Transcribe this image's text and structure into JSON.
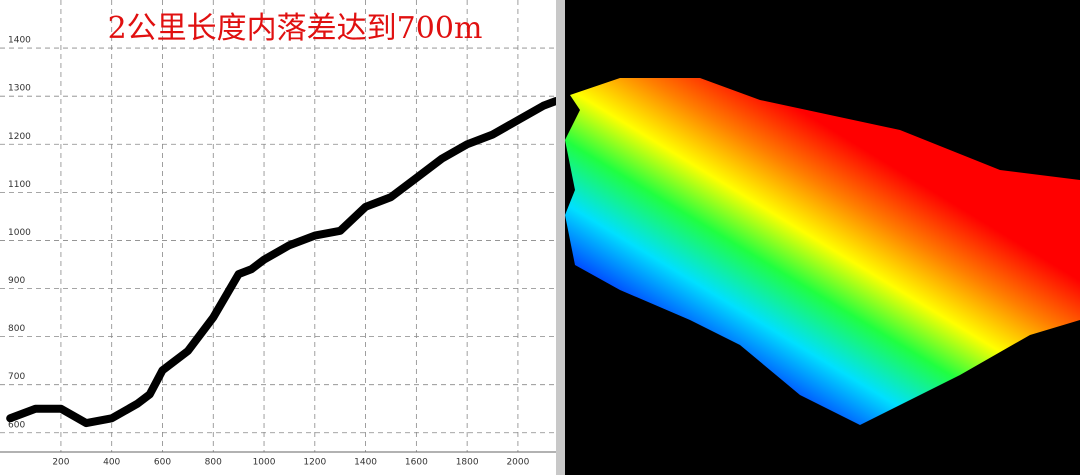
{
  "chart_data": {
    "type": "line",
    "title": "2公里长度内落差达到700m",
    "x": [
      0,
      100,
      200,
      300,
      400,
      500,
      550,
      600,
      700,
      800,
      900,
      950,
      1000,
      1100,
      1200,
      1300,
      1400,
      1500,
      1600,
      1700,
      1800,
      1900,
      2000,
      2100,
      2150
    ],
    "values": [
      630,
      650,
      650,
      620,
      630,
      660,
      680,
      730,
      770,
      840,
      930,
      940,
      960,
      990,
      1010,
      1020,
      1070,
      1090,
      1130,
      1170,
      1200,
      1220,
      1250,
      1280,
      1290
    ],
    "color": "#000000",
    "xlim": [
      -40,
      2150
    ],
    "xticks": [
      200,
      400,
      600,
      800,
      1000,
      1200,
      1400,
      1600,
      1800,
      2000
    ],
    "ylim": [
      560,
      1500
    ],
    "yticks": [
      600,
      700,
      800,
      900,
      1000,
      1100,
      1200,
      1300,
      1400
    ],
    "grid": true
  }
}
